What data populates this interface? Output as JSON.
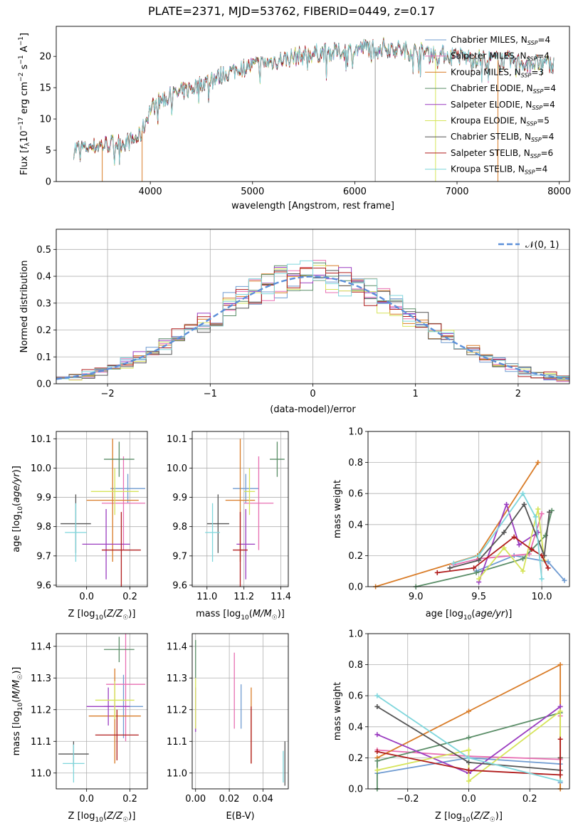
{
  "figure": {
    "title": "PLATE=2371, MJD=53762, FIBERID=0449, z=0.17"
  },
  "chart_data": [
    {
      "id": "spectrum",
      "type": "line",
      "xlabel": "wavelength [Angstrom, rest frame]",
      "ylabel": "Flux [f_λ10^−17 erg cm^−2 s^−1 A^−1]",
      "xlim": [
        3080,
        8100
      ],
      "ylim": [
        0,
        24.8
      ],
      "xticks": [
        4000,
        5000,
        6000,
        7000,
        8000
      ],
      "yticks": [
        0,
        5,
        10,
        15,
        20
      ],
      "grid": false,
      "legend_position": "top-right",
      "continuum": {
        "x": [
          3250,
          3400,
          3600,
          3800,
          3900,
          4000,
          4100,
          4300,
          4500,
          4700,
          4900,
          5100,
          5300,
          5500,
          5700,
          5900,
          6100,
          6300,
          6500,
          6700,
          6900,
          7100,
          7300,
          7500,
          7700,
          7900
        ],
        "y": [
          5.2,
          5.6,
          6.0,
          6.4,
          7.2,
          11.6,
          13.0,
          14.2,
          15.6,
          17.0,
          18.2,
          18.8,
          19.6,
          20.2,
          20.6,
          20.8,
          21.4,
          21.5,
          20.9,
          20.6,
          20.2,
          19.8,
          19.5,
          19.3,
          19.0,
          18.8
        ]
      },
      "series": [
        {
          "name": "Chabrier MILES, N_SSP=4",
          "color": "#6f9bd1"
        },
        {
          "name": "Salpeter MILES, N_SSP=4",
          "color": "#e86fb2"
        },
        {
          "name": "Kroupa MILES, N_SSP=3",
          "color": "#d97c28"
        },
        {
          "name": "Chabrier ELODIE, N_SSP=4",
          "color": "#5b8e68"
        },
        {
          "name": "Salpeter ELODIE, N_SSP=4",
          "color": "#9a3cc0"
        },
        {
          "name": "Kroupa ELODIE, N_SSP=5",
          "color": "#d6e45a"
        },
        {
          "name": "Chabrier STELIB, N_SSP=4",
          "color": "#555555"
        },
        {
          "name": "Salpeter STELIB, N_SSP=6",
          "color": "#b01c1c"
        },
        {
          "name": "Kroupa STELIB, N_SSP=4",
          "color": "#7fd6dc"
        }
      ]
    },
    {
      "id": "residuals",
      "type": "histogram",
      "xlabel": "(data-model)/error",
      "ylabel": "Normed distribution",
      "xlim": [
        -2.5,
        2.5
      ],
      "ylim": [
        0,
        0.575
      ],
      "xticks": [
        -2,
        -1,
        0,
        1,
        2
      ],
      "yticks": [
        0.0,
        0.1,
        0.2,
        0.3,
        0.4,
        0.5
      ],
      "grid": true,
      "bins": 40,
      "legend_position": "top-right",
      "reference": {
        "name": "𝒩(0, 1)",
        "color": "#5b8fd9",
        "mean": 0,
        "sigma": 1
      }
    },
    {
      "id": "age-vs-Z",
      "type": "scatter",
      "xlabel": "Z [log10(Z/Z☉)]",
      "ylabel": "age  [log10(age/yr)]",
      "xlim": [
        -0.14,
        0.28
      ],
      "ylim": [
        9.595,
        10.125
      ],
      "xticks": [
        0.0,
        0.2
      ],
      "yticks": [
        9.6,
        9.7,
        9.8,
        9.9,
        10.0,
        10.1
      ],
      "grid": true,
      "points": [
        {
          "x": 0.19,
          "y": 9.93,
          "xerr": 0.08,
          "yerr": 0.05
        },
        {
          "x": 0.17,
          "y": 9.88,
          "xerr": 0.1,
          "yerr": 0.16
        },
        {
          "x": 0.12,
          "y": 9.89,
          "xerr": 0.12,
          "yerr": 0.21
        },
        {
          "x": 0.15,
          "y": 10.03,
          "xerr": 0.07,
          "yerr": 0.06
        },
        {
          "x": 0.09,
          "y": 9.74,
          "xerr": 0.11,
          "yerr": 0.12
        },
        {
          "x": 0.13,
          "y": 9.92,
          "xerr": 0.11,
          "yerr": 0.08
        },
        {
          "x": -0.05,
          "y": 9.81,
          "xerr": 0.07,
          "yerr": 0.1
        },
        {
          "x": 0.16,
          "y": 9.72,
          "xerr": 0.09,
          "yerr": 0.13
        },
        {
          "x": -0.05,
          "y": 9.78,
          "xerr": 0.05,
          "yerr": 0.1
        }
      ]
    },
    {
      "id": "age-vs-mass",
      "type": "scatter",
      "xlabel": "mass [log10(M/M☉)]",
      "ylabel": "",
      "xlim": [
        10.92,
        11.44
      ],
      "ylim": [
        9.595,
        10.125
      ],
      "xticks": [
        11.0,
        11.2,
        11.4
      ],
      "yticks": [
        9.6,
        9.7,
        9.8,
        9.9,
        10.0,
        10.1
      ],
      "grid": true,
      "points": [
        {
          "x": 11.21,
          "y": 9.93,
          "xerr": 0.07,
          "yerr": 0.05
        },
        {
          "x": 11.28,
          "y": 9.88,
          "xerr": 0.08,
          "yerr": 0.16
        },
        {
          "x": 11.18,
          "y": 9.89,
          "xerr": 0.08,
          "yerr": 0.21
        },
        {
          "x": 11.38,
          "y": 10.03,
          "xerr": 0.04,
          "yerr": 0.06
        },
        {
          "x": 11.21,
          "y": 9.74,
          "xerr": 0.05,
          "yerr": 0.12
        },
        {
          "x": 11.23,
          "y": 9.92,
          "xerr": 0.03,
          "yerr": 0.08
        },
        {
          "x": 11.06,
          "y": 9.81,
          "xerr": 0.06,
          "yerr": 0.1
        },
        {
          "x": 11.18,
          "y": 9.72,
          "xerr": 0.04,
          "yerr": 0.13
        },
        {
          "x": 11.03,
          "y": 9.78,
          "xerr": 0.04,
          "yerr": 0.1
        }
      ]
    },
    {
      "id": "weight-vs-age",
      "type": "line",
      "xlabel": "age  [log10(age/yr)]",
      "ylabel": "mass weight",
      "xlim": [
        8.62,
        10.22
      ],
      "ylim": [
        0,
        1.0
      ],
      "xticks": [
        9.0,
        9.5,
        10.0
      ],
      "yticks": [
        0.0,
        0.2,
        0.4,
        0.6,
        0.8,
        1.0
      ],
      "grid": true,
      "series": [
        {
          "x": [
            9.48,
            9.78,
            10.05,
            10.18
          ],
          "y": [
            0.1,
            0.2,
            0.16,
            0.04
          ]
        },
        {
          "x": [
            9.3,
            9.5,
            9.9,
            10.0
          ],
          "y": [
            0.14,
            0.18,
            0.21,
            0.47
          ]
        },
        {
          "x": [
            8.68,
            9.49,
            9.97
          ],
          "y": [
            0.0,
            0.2,
            0.8
          ]
        },
        {
          "x": [
            9.0,
            9.48,
            9.85,
            10.03,
            10.08
          ],
          "y": [
            0.0,
            0.09,
            0.18,
            0.33,
            0.49
          ]
        },
        {
          "x": [
            9.5,
            9.72,
            9.82,
            9.97
          ],
          "y": [
            0.03,
            0.53,
            0.27,
            0.35
          ]
        },
        {
          "x": [
            9.5,
            9.7,
            9.85,
            9.97,
            10.02
          ],
          "y": [
            0.05,
            0.25,
            0.1,
            0.5,
            0.17
          ]
        },
        {
          "x": [
            9.27,
            9.5,
            9.7,
            9.86,
            10.02,
            10.06
          ],
          "y": [
            0.12,
            0.17,
            0.35,
            0.53,
            0.2,
            0.48
          ]
        },
        {
          "x": [
            9.17,
            9.46,
            9.78,
            9.92,
            10.0,
            10.05
          ],
          "y": [
            0.09,
            0.12,
            0.32,
            0.24,
            0.2,
            0.12
          ]
        },
        {
          "x": [
            9.3,
            9.5,
            9.85,
            9.95,
            10.0
          ],
          "y": [
            0.15,
            0.2,
            0.6,
            0.45,
            0.05
          ]
        }
      ]
    },
    {
      "id": "mass-vs-Z",
      "type": "scatter",
      "xlabel": "Z [log10(Z/Z☉)]",
      "ylabel": "mass [log10(M/M☉)]",
      "xlim": [
        -0.14,
        0.28
      ],
      "ylim": [
        10.95,
        11.44
      ],
      "xticks": [
        0.0,
        0.2
      ],
      "yticks": [
        11.0,
        11.1,
        11.2,
        11.3,
        11.4
      ],
      "grid": true,
      "points": [
        {
          "x": 0.17,
          "y": 11.21,
          "xerr": 0.09,
          "yerr": 0.1
        },
        {
          "x": 0.18,
          "y": 11.28,
          "xerr": 0.09,
          "yerr": 0.18
        },
        {
          "x": 0.13,
          "y": 11.18,
          "xerr": 0.12,
          "yerr": 0.15
        },
        {
          "x": 0.15,
          "y": 11.39,
          "xerr": 0.07,
          "yerr": 0.04
        },
        {
          "x": 0.1,
          "y": 11.21,
          "xerr": 0.1,
          "yerr": 0.06
        },
        {
          "x": 0.13,
          "y": 11.23,
          "xerr": 0.09,
          "yerr": 0.06
        },
        {
          "x": -0.06,
          "y": 11.06,
          "xerr": 0.07,
          "yerr": 0.04
        },
        {
          "x": 0.14,
          "y": 11.12,
          "xerr": 0.1,
          "yerr": 0.08
        },
        {
          "x": -0.06,
          "y": 11.03,
          "xerr": 0.05,
          "yerr": 0.06
        }
      ]
    },
    {
      "id": "mass-vs-ebv",
      "type": "scatter",
      "xlabel": "E(B-V)",
      "ylabel": "",
      "xlim": [
        -0.002,
        0.055
      ],
      "ylim": [
        10.95,
        11.44
      ],
      "xticks": [
        0.0,
        0.02,
        0.04
      ],
      "yticks": [
        11.0,
        11.1,
        11.2,
        11.3,
        11.4
      ],
      "grid": true,
      "points": [
        {
          "x": 0.027,
          "y": 11.21,
          "xerr": 0,
          "yerr": 0.07
        },
        {
          "x": 0.023,
          "y": 11.26,
          "xerr": 0,
          "yerr": 0.12
        },
        {
          "x": 0.033,
          "y": 11.15,
          "xerr": 0,
          "yerr": 0.12
        },
        {
          "x": 0.0,
          "y": 11.36,
          "xerr": 0,
          "yerr": 0.06
        },
        {
          "x": 0.0,
          "y": 11.2,
          "xerr": 0,
          "yerr": 0.07
        },
        {
          "x": 0.0,
          "y": 11.22,
          "xerr": 0,
          "yerr": 0.08
        },
        {
          "x": 0.053,
          "y": 11.03,
          "xerr": 0,
          "yerr": 0.07
        },
        {
          "x": 0.033,
          "y": 11.12,
          "xerr": 0,
          "yerr": 0.09
        },
        {
          "x": 0.052,
          "y": 11.02,
          "xerr": 0,
          "yerr": 0.05
        }
      ]
    },
    {
      "id": "weight-vs-Z",
      "type": "line",
      "xlabel": "Z [log10(Z/Z☉)]",
      "ylabel": "mass weight",
      "xlim": [
        -0.33,
        0.33
      ],
      "ylim": [
        0,
        1.0
      ],
      "xticks": [
        -0.2,
        0.0,
        0.2
      ],
      "yticks": [
        0.0,
        0.2,
        0.4,
        0.6,
        0.8,
        1.0
      ],
      "grid": true,
      "series": [
        {
          "x": [
            -0.3,
            0.0,
            0.3,
            0.3
          ],
          "y": [
            0.1,
            0.2,
            0.16,
            0.04
          ]
        },
        {
          "x": [
            -0.3,
            0.0,
            0.3,
            0.3
          ],
          "y": [
            0.25,
            0.21,
            0.19,
            0.47
          ]
        },
        {
          "x": [
            -0.3,
            0.0,
            0.3,
            0.3
          ],
          "y": [
            0.2,
            0.5,
            0.8,
            0.0
          ]
        },
        {
          "x": [
            -0.3,
            -0.3,
            0.0,
            0.3
          ],
          "y": [
            0.0,
            0.18,
            0.33,
            0.49
          ]
        },
        {
          "x": [
            -0.3,
            0.0,
            0.3
          ],
          "y": [
            0.35,
            0.1,
            0.53
          ]
        },
        {
          "x": [
            -0.3,
            0.0,
            0.0,
            0.3,
            0.3
          ],
          "y": [
            0.12,
            0.25,
            0.05,
            0.5,
            0.2
          ]
        },
        {
          "x": [
            -0.3,
            0.0,
            0.3,
            0.3
          ],
          "y": [
            0.53,
            0.17,
            0.12,
            0.2
          ]
        },
        {
          "x": [
            -0.3,
            0.0,
            0.3,
            0.3
          ],
          "y": [
            0.24,
            0.12,
            0.09,
            0.32
          ]
        },
        {
          "x": [
            -0.3,
            0.0,
            0.3
          ],
          "y": [
            0.6,
            0.2,
            0.05
          ]
        }
      ]
    }
  ]
}
